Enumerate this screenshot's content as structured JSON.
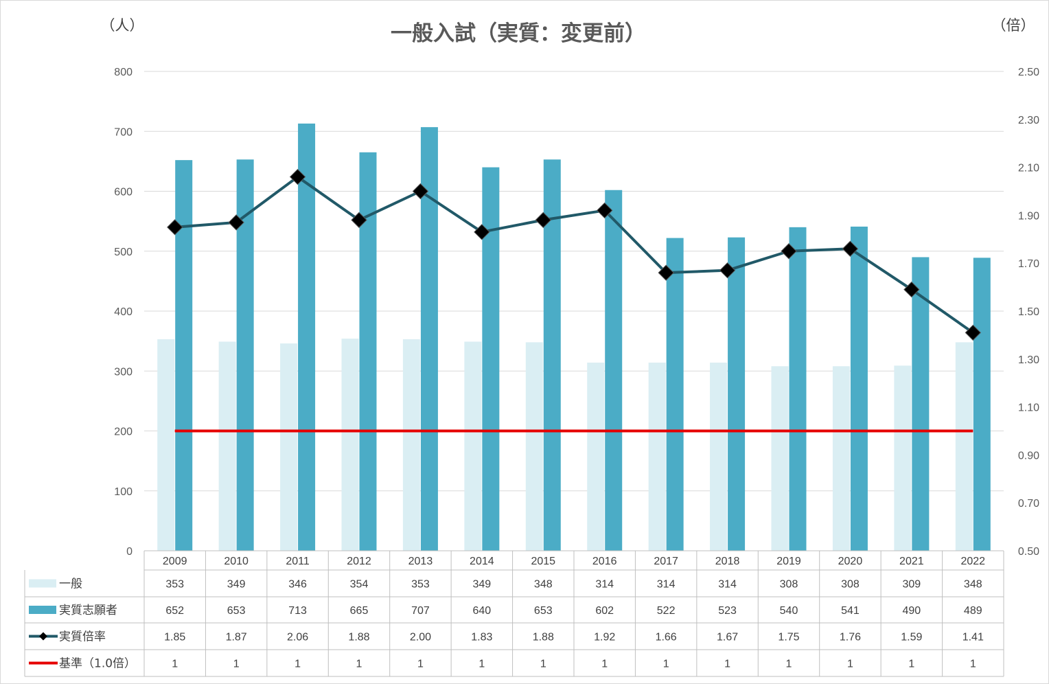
{
  "chart_data": {
    "type": "bar",
    "title": "一般入試（実質：変更前）",
    "left_unit": "（人）",
    "right_unit": "（倍）",
    "categories": [
      "2009",
      "2010",
      "2011",
      "2012",
      "2013",
      "2014",
      "2015",
      "2016",
      "2017",
      "2018",
      "2019",
      "2020",
      "2021",
      "2022"
    ],
    "ylim": [
      0,
      800
    ],
    "y_ticks": [
      "0",
      "100",
      "200",
      "300",
      "400",
      "500",
      "600",
      "700",
      "800"
    ],
    "y2lim": [
      0.5,
      2.5
    ],
    "y2_ticks": [
      "0.50",
      "0.70",
      "0.90",
      "1.10",
      "1.30",
      "1.50",
      "1.70",
      "1.90",
      "2.10",
      "2.30",
      "2.50"
    ],
    "grid": true,
    "legend_placement": "data-table",
    "series": [
      {
        "name": "一般",
        "type": "bar",
        "axis": "left",
        "color": "#daeef3",
        "values": [
          353,
          349,
          346,
          354,
          353,
          349,
          348,
          314,
          314,
          314,
          308,
          308,
          309,
          348
        ]
      },
      {
        "name": "実質志願者",
        "type": "bar",
        "axis": "left",
        "color": "#4bacc6",
        "values": [
          652,
          653,
          713,
          665,
          707,
          640,
          653,
          602,
          522,
          523,
          540,
          541,
          490,
          489
        ]
      },
      {
        "name": "実質倍率",
        "type": "line",
        "axis": "right",
        "color": "#215968",
        "marker": "diamond",
        "values": [
          1.85,
          1.87,
          2.06,
          1.88,
          2.0,
          1.83,
          1.88,
          1.92,
          1.66,
          1.67,
          1.75,
          1.76,
          1.59,
          1.41
        ],
        "labels": [
          "1.85",
          "1.87",
          "2.06",
          "1.88",
          "2.00",
          "1.83",
          "1.88",
          "1.92",
          "1.66",
          "1.67",
          "1.75",
          "1.76",
          "1.59",
          "1.41"
        ]
      },
      {
        "name": "基準（1.0倍）",
        "type": "line",
        "axis": "right",
        "color": "#e60000",
        "values": [
          1,
          1,
          1,
          1,
          1,
          1,
          1,
          1,
          1,
          1,
          1,
          1,
          1,
          1
        ]
      }
    ]
  }
}
